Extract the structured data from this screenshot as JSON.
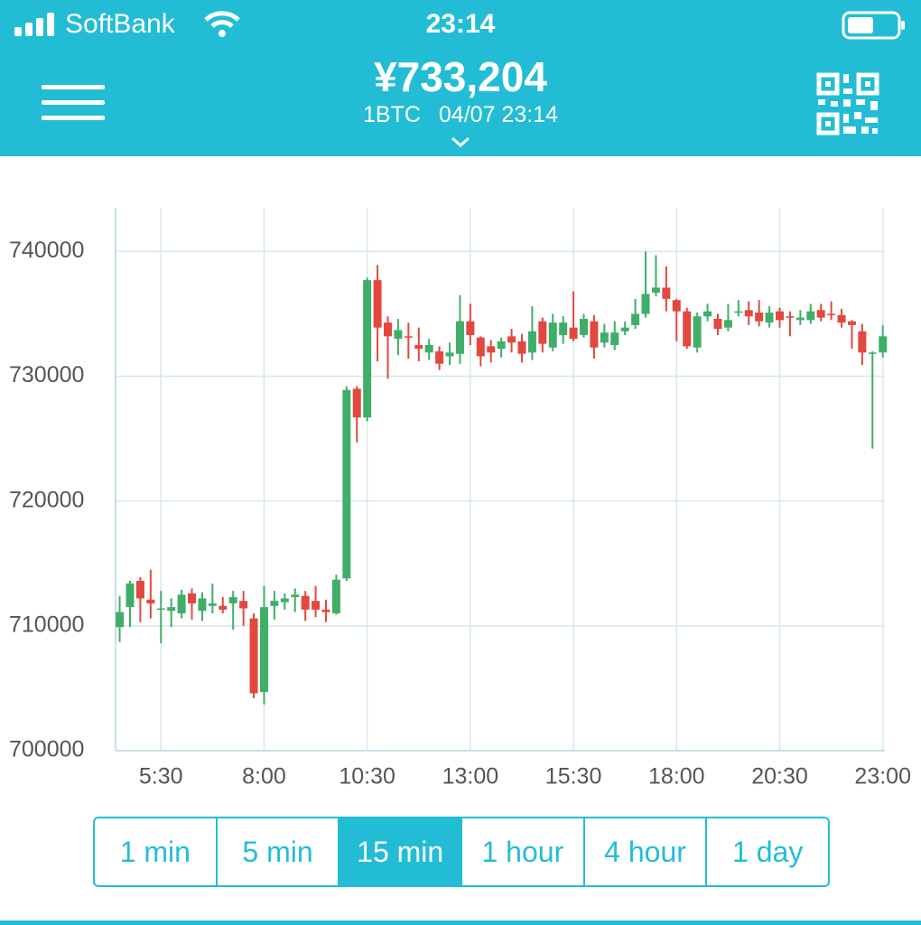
{
  "status_bar": {
    "carrier": "SoftBank",
    "time": "23:14"
  },
  "header": {
    "price": "¥733,204",
    "unit": "1BTC",
    "datetime": "04/07 23:14"
  },
  "chart_data": {
    "type": "candlestick",
    "x": [
      4.5,
      4.75,
      5,
      5.25,
      5.5,
      5.75,
      6,
      6.25,
      6.5,
      6.75,
      7,
      7.25,
      7.5,
      7.75,
      8,
      8.25,
      8.5,
      8.75,
      9,
      9.25,
      9.5,
      9.75,
      10,
      10.25,
      10.5,
      10.75,
      11,
      11.25,
      11.5,
      11.75,
      12,
      12.25,
      12.5,
      12.75,
      13,
      13.25,
      13.5,
      13.75,
      14,
      14.25,
      14.5,
      14.75,
      15,
      15.25,
      15.5,
      15.75,
      16,
      16.25,
      16.5,
      16.75,
      17,
      17.25,
      17.5,
      17.75,
      18,
      18.25,
      18.5,
      18.75,
      19,
      19.25,
      19.5,
      19.75,
      20,
      20.25,
      20.5,
      20.75,
      21,
      21.25,
      21.5,
      21.75,
      22,
      22.25,
      22.5,
      22.75,
      23
    ],
    "open": [
      709900,
      711500,
      713600,
      712100,
      711300,
      711200,
      711000,
      712600,
      711200,
      711600,
      711600,
      711800,
      712000,
      710600,
      704700,
      711600,
      711900,
      712300,
      712400,
      712000,
      711300,
      711000,
      713800,
      729000,
      726700,
      737700,
      734300,
      733000,
      733200,
      732500,
      731900,
      732000,
      731600,
      731800,
      734400,
      733100,
      732400,
      732200,
      733200,
      732800,
      731900,
      734400,
      732300,
      733300,
      733900,
      733300,
      734400,
      732700,
      732500,
      733600,
      734100,
      735000,
      736700,
      737100,
      736100,
      735200,
      732300,
      734800,
      734600,
      733900,
      735100,
      735300,
      735100,
      734300,
      735200,
      734800,
      734500,
      734500,
      735300,
      735000,
      734900,
      734400,
      733600,
      731800,
      731900
    ],
    "high": [
      712400,
      713600,
      713900,
      714500,
      712800,
      712200,
      712900,
      713000,
      712700,
      713400,
      712300,
      712800,
      712800,
      711000,
      713200,
      712800,
      712600,
      713000,
      712800,
      713200,
      712100,
      714100,
      729200,
      729200,
      737900,
      738900,
      734800,
      734600,
      734300,
      733900,
      733000,
      732400,
      732700,
      736500,
      735800,
      733200,
      732900,
      733100,
      733800,
      733400,
      735600,
      734700,
      735000,
      734800,
      736800,
      735000,
      734900,
      734200,
      734400,
      734400,
      736200,
      740000,
      739700,
      738800,
      736200,
      735500,
      735100,
      735800,
      735000,
      735800,
      736100,
      736000,
      736100,
      735600,
      735500,
      735200,
      735300,
      735800,
      735800,
      736000,
      735400,
      734500,
      734200,
      732000,
      734100
    ],
    "low": [
      708700,
      709900,
      710300,
      710600,
      708600,
      709900,
      710600,
      710500,
      710400,
      711000,
      711000,
      709700,
      710000,
      704200,
      703700,
      710500,
      711300,
      711100,
      710400,
      710700,
      710300,
      710900,
      713600,
      724700,
      726400,
      731200,
      729800,
      731700,
      731400,
      731200,
      731300,
      730500,
      730900,
      731000,
      732500,
      730800,
      731100,
      731500,
      731900,
      731100,
      731300,
      731900,
      732000,
      732600,
      732800,
      733100,
      731400,
      732300,
      732100,
      733300,
      733800,
      734700,
      736400,
      735200,
      732800,
      732200,
      731900,
      734400,
      733300,
      733600,
      734800,
      734100,
      734000,
      733900,
      733900,
      733200,
      734100,
      734200,
      734400,
      734500,
      733900,
      732200,
      730900,
      724200,
      731500
    ],
    "close": [
      711100,
      713400,
      712200,
      711800,
      711400,
      711500,
      712500,
      711800,
      712200,
      711800,
      711300,
      712300,
      711400,
      704600,
      711500,
      712000,
      712200,
      712500,
      711300,
      711300,
      711100,
      713700,
      728900,
      726700,
      737700,
      733900,
      733200,
      733700,
      733100,
      732200,
      732500,
      731000,
      731900,
      734400,
      733300,
      731600,
      731900,
      732800,
      732700,
      731800,
      733600,
      732600,
      734300,
      734300,
      733000,
      734600,
      732300,
      733500,
      733500,
      733900,
      735000,
      736600,
      737100,
      736200,
      735200,
      732400,
      734800,
      735200,
      733800,
      734500,
      735200,
      734800,
      734400,
      735100,
      734500,
      734700,
      734700,
      735200,
      734700,
      734900,
      734300,
      734100,
      731900,
      731900,
      733200
    ],
    "up_color": "#3fae69",
    "down_color": "#e2483f",
    "xlim": [
      4.4,
      23.05
    ],
    "ylim": [
      700000,
      743500
    ],
    "xticks": [
      {
        "value": 5.5,
        "label": "5:30"
      },
      {
        "value": 8,
        "label": "8:00"
      },
      {
        "value": 10.5,
        "label": "10:30"
      },
      {
        "value": 13,
        "label": "13:00"
      },
      {
        "value": 15.5,
        "label": "15:30"
      },
      {
        "value": 18,
        "label": "18:00"
      },
      {
        "value": 20.5,
        "label": "20:30"
      },
      {
        "value": 23,
        "label": "23:00"
      }
    ],
    "yticks": [
      700000,
      710000,
      720000,
      730000,
      740000
    ],
    "grid": true
  },
  "timeframes": {
    "options": [
      "1 min",
      "5 min",
      "15 min",
      "1 hour",
      "4 hour",
      "1 day"
    ],
    "selected": 2
  }
}
